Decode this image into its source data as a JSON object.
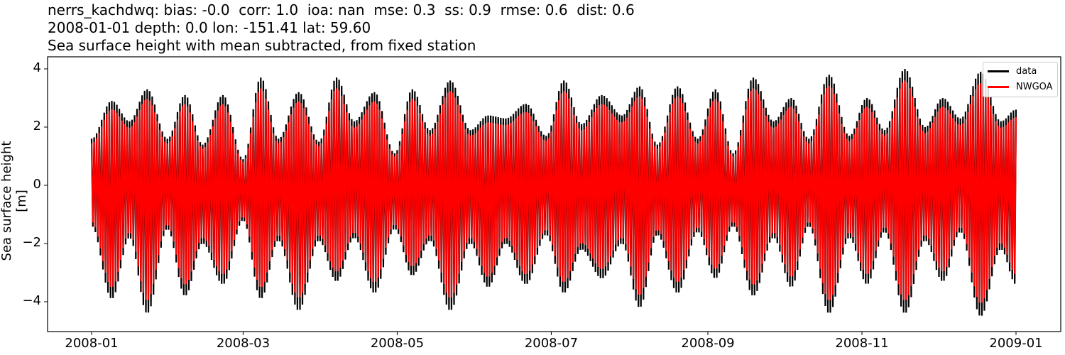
{
  "chart_data": {
    "type": "line",
    "title_lines": [
      "nerrs_kachdwq: bias: -0.0  corr: 1.0  ioa: nan  mse: 0.3  ss: 0.9  rmse: 0.6  dist: 0.6",
      "2008-01-01 depth: 0.0 lon: -151.41 lat: 59.60",
      "Sea surface height with mean subtracted, from fixed station"
    ],
    "stats": {
      "station": "nerrs_kachdwq",
      "bias": "-0.0",
      "corr": "1.0",
      "ioa": "nan",
      "mse": "0.3",
      "ss": "0.9",
      "rmse": "0.6",
      "dist": "0.6",
      "date": "2008-01-01",
      "depth": "0.0",
      "lon": "-151.41",
      "lat": "59.60"
    },
    "xlabel": "",
    "ylabel": "Sea surface height [m]",
    "x_ticks": [
      "2008-01",
      "2008-03",
      "2008-05",
      "2008-07",
      "2008-09",
      "2008-11",
      "2009-01"
    ],
    "y_ticks": [
      4,
      2,
      0,
      -2,
      -4
    ],
    "y_tick_labels": [
      "4",
      "2",
      "0",
      "−2",
      "−4"
    ],
    "ylim": [
      -5,
      4.4
    ],
    "xlim": [
      "2007-12-03",
      "2009-01-28"
    ],
    "grid": false,
    "legend_position": "upper right",
    "series": [
      {
        "name": "data",
        "color": "#000000",
        "description": "Observed tidal sea surface height (oscillating, spring-neap envelope)",
        "envelope_days": [
          0,
          8,
          15,
          22,
          30,
          37,
          44,
          52,
          60,
          67,
          74,
          82,
          90,
          97,
          104,
          112,
          120,
          127,
          134,
          142,
          150,
          157,
          164,
          172,
          180,
          187,
          194,
          202,
          210,
          217,
          224,
          232,
          240,
          247,
          254,
          262,
          270,
          277,
          284,
          292,
          300,
          307,
          314,
          322,
          330,
          337,
          344,
          352,
          360,
          366
        ],
        "envelope_max": [
          1.6,
          2.9,
          2.2,
          3.3,
          1.6,
          3.1,
          1.4,
          3.1,
          0.9,
          3.7,
          1.6,
          3.2,
          1.5,
          3.7,
          2.2,
          3.2,
          1.1,
          3.3,
          1.9,
          3.6,
          1.9,
          2.4,
          2.3,
          2.8,
          1.7,
          3.6,
          2.1,
          3.1,
          2.4,
          3.4,
          1.4,
          3.4,
          1.6,
          3.3,
          1.1,
          3.7,
          2.2,
          3.0,
          1.6,
          3.8,
          1.7,
          3.0,
          1.9,
          4.0,
          2.0,
          3.0,
          2.3,
          3.9,
          2.2,
          2.6
        ],
        "envelope_min": [
          -1.4,
          -3.9,
          -1.8,
          -4.4,
          -1.5,
          -3.8,
          -2.0,
          -3.4,
          -1.2,
          -3.9,
          -1.9,
          -4.3,
          -1.9,
          -3.3,
          -1.8,
          -3.7,
          -1.5,
          -3.1,
          -1.9,
          -4.3,
          -2.0,
          -3.5,
          -2.0,
          -3.4,
          -1.7,
          -3.7,
          -2.2,
          -3.2,
          -2.0,
          -4.2,
          -1.7,
          -3.7,
          -1.6,
          -3.2,
          -1.4,
          -3.8,
          -1.8,
          -3.5,
          -1.4,
          -4.4,
          -1.8,
          -3.4,
          -1.6,
          -4.4,
          -1.9,
          -3.3,
          -1.6,
          -4.5,
          -2.2,
          -3.4
        ]
      },
      {
        "name": "NWGOA",
        "color": "#ff0000",
        "description": "Model sea surface height, slightly smaller amplitude than data",
        "amplitude_ratio_to_data": 0.9
      }
    ]
  },
  "legend": {
    "items": [
      {
        "label": "data",
        "color": "#000000"
      },
      {
        "label": "NWGOA",
        "color": "#ff0000"
      }
    ]
  }
}
